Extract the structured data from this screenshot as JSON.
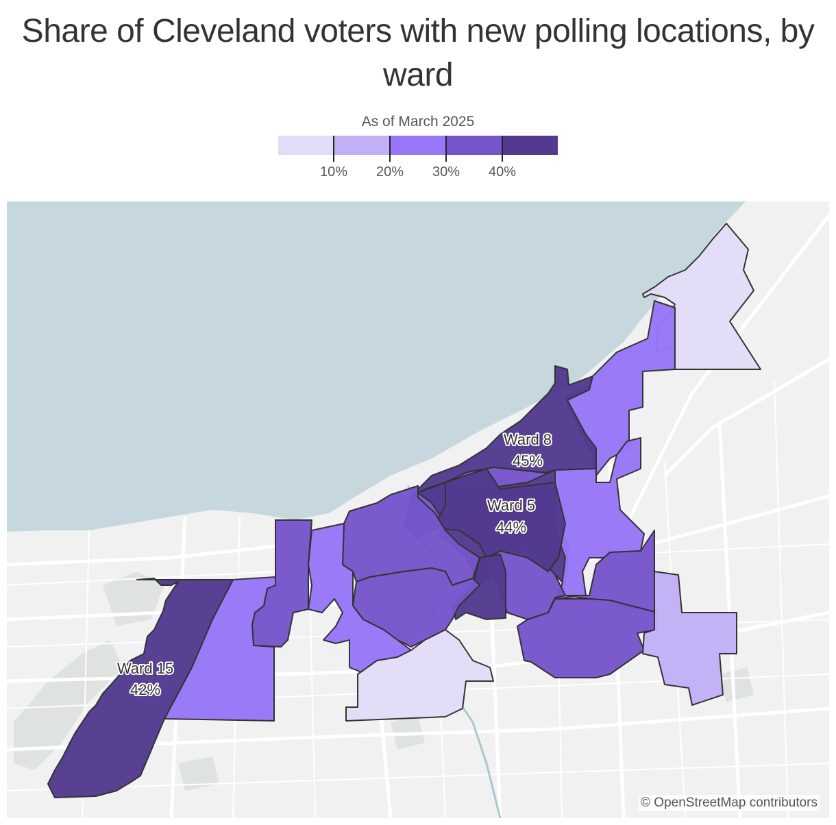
{
  "title": "Share of Cleveland voters with new polling locations, by ward",
  "legend": {
    "title": "As of March 2025",
    "bins": [
      {
        "color": "#e3dcf8"
      },
      {
        "color": "#c1b0f5"
      },
      {
        "color": "#9876f7"
      },
      {
        "color": "#7655cb"
      },
      {
        "color": "#533a8f"
      }
    ],
    "ticks": [
      "10%",
      "20%",
      "30%",
      "40%"
    ]
  },
  "colors": {
    "lake": "#c6d8de",
    "land": "#f0f1f0",
    "roads": "#ffffff",
    "park": "#dfe3e0",
    "river": "#a9c7cf",
    "ward_outline": "#333333"
  },
  "labels": [
    {
      "ward": "Ward 8",
      "value": "45%"
    },
    {
      "ward": "Ward 5",
      "value": "44%"
    },
    {
      "ward": "Ward 15",
      "value": "42%"
    }
  ],
  "attribution": "© OpenStreetMap contributors"
}
